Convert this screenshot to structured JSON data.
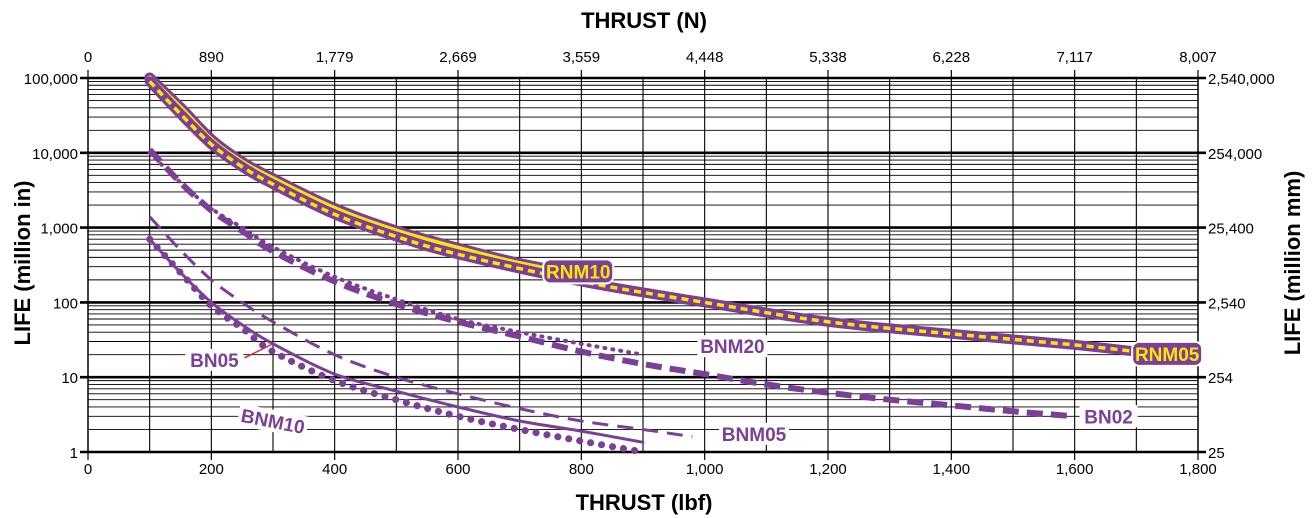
{
  "chart_data": {
    "type": "line",
    "title": "",
    "xlabel": "THRUST (lbf)",
    "x2label": "THRUST (N)",
    "ylabel": "LIFE (million in)",
    "y2label": "LIFE (million mm)",
    "xlim": [
      0,
      1800
    ],
    "ylim": [
      1,
      100000
    ],
    "yscale": "log",
    "grid": true,
    "x_ticks": [
      "0",
      "200",
      "400",
      "600",
      "800",
      "1,000",
      "1,200",
      "1,400",
      "1,600",
      "1,800"
    ],
    "x_tick_values": [
      0,
      200,
      400,
      600,
      800,
      1000,
      1200,
      1400,
      1600,
      1800
    ],
    "x2_ticks": [
      "0",
      "890",
      "1,779",
      "2,669",
      "3,559",
      "4,448",
      "5,338",
      "6,228",
      "7,117",
      "8,007"
    ],
    "y_ticks": [
      "1",
      "10",
      "100",
      "1,000",
      "10,000",
      "100,000"
    ],
    "y_tick_values": [
      1,
      10,
      100,
      1000,
      10000,
      100000
    ],
    "y2_ticks": [
      "25",
      "254",
      "2,540",
      "25,400",
      "254,000",
      "2,540,000"
    ],
    "colors": {
      "purple": "#7b3f98",
      "yellow": "#ffe600",
      "grid": "#000000",
      "label_red": "#d03030"
    },
    "series": [
      {
        "name": "RNM10",
        "style": "thick-yellow-core",
        "x": [
          100,
          150,
          200,
          250,
          300,
          400,
          500,
          600,
          700,
          800
        ],
        "y": [
          100000,
          40000,
          15000,
          7500,
          4500,
          1800,
          900,
          530,
          330,
          230
        ]
      },
      {
        "name": "RNM05",
        "style": "thick-yellow-dashed-core",
        "x": [
          100,
          150,
          200,
          250,
          300,
          400,
          500,
          600,
          800,
          1000,
          1200,
          1400,
          1600,
          1700
        ],
        "y": [
          90000,
          33000,
          13000,
          6500,
          3800,
          1500,
          760,
          440,
          190,
          100,
          55,
          38,
          27,
          22
        ]
      },
      {
        "name": "BNM20",
        "style": "dotted",
        "x": [
          100,
          150,
          200,
          250,
          300,
          400,
          500,
          600,
          700,
          800,
          900
        ],
        "y": [
          10000,
          4000,
          1800,
          1000,
          550,
          220,
          110,
          60,
          40,
          28,
          20
        ]
      },
      {
        "name": "BN02",
        "style": "thick-dashed",
        "x": [
          100,
          150,
          200,
          250,
          300,
          400,
          500,
          600,
          700,
          800,
          900,
          1000,
          1100,
          1200,
          1300,
          1400,
          1500,
          1600
        ],
        "y": [
          11000,
          4000,
          1700,
          900,
          480,
          190,
          95,
          55,
          35,
          22,
          15,
          11,
          8,
          6.2,
          5,
          4.2,
          3.5,
          3
        ]
      },
      {
        "name": "BNM05",
        "style": "dashed",
        "x": [
          100,
          150,
          200,
          250,
          300,
          400,
          500,
          600,
          700,
          800,
          900,
          980
        ],
        "y": [
          1400,
          500,
          200,
          100,
          55,
          20,
          10,
          6,
          3.8,
          2.6,
          2,
          1.6
        ]
      },
      {
        "name": "BN05",
        "style": "solid",
        "x": [
          100,
          150,
          200,
          250,
          300,
          400,
          500,
          600,
          700,
          800,
          900
        ],
        "y": [
          700,
          250,
          100,
          50,
          28,
          11,
          6.5,
          4,
          2.6,
          1.9,
          1.35
        ]
      },
      {
        "name": "BNM10",
        "style": "dots",
        "x": [
          100,
          150,
          200,
          250,
          300,
          400,
          500,
          600,
          700,
          800,
          900
        ],
        "y": [
          700,
          250,
          90,
          45,
          22,
          9,
          5,
          3,
          2,
          1.4,
          1
        ]
      }
    ]
  }
}
